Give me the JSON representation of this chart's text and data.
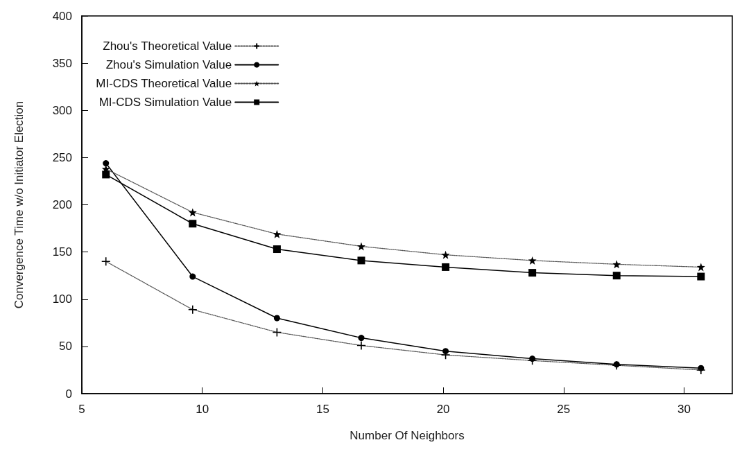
{
  "chart_data": {
    "type": "line",
    "xlabel": "Number Of Neighbors",
    "ylabel": "Convergence Time w/o Initiator Election",
    "x": [
      6,
      9.6,
      13.1,
      16.6,
      20.1,
      23.7,
      27.2,
      30.7
    ],
    "series": [
      {
        "name": "Zhou's Theoretical Value",
        "color": "#000000",
        "marker": "cross",
        "line_style": "dotted",
        "values": [
          140,
          89,
          65,
          51,
          41,
          35,
          30,
          25
        ]
      },
      {
        "name": "Zhou's Simulation Value",
        "color": "#000000",
        "marker": "circle",
        "line_style": "solid",
        "values": [
          244,
          124,
          80,
          59,
          45,
          37,
          31,
          27
        ]
      },
      {
        "name": "MI-CDS Theoretical Value",
        "color": "#000000",
        "marker": "star",
        "line_style": "dotted",
        "values": [
          238,
          192,
          169,
          156,
          147,
          141,
          137,
          134
        ]
      },
      {
        "name": "MI-CDS Simulation Value",
        "color": "#000000",
        "marker": "square",
        "line_style": "solid",
        "values": [
          232,
          180,
          153,
          141,
          134,
          128,
          125,
          124
        ]
      }
    ],
    "xlim": [
      5,
      32
    ],
    "xticks": [
      5,
      10,
      15,
      20,
      25,
      30
    ],
    "ylim": [
      0,
      400
    ],
    "yticks": [
      0,
      50,
      100,
      150,
      200,
      250,
      300,
      350,
      400
    ],
    "grid": false,
    "legend": "top left"
  }
}
